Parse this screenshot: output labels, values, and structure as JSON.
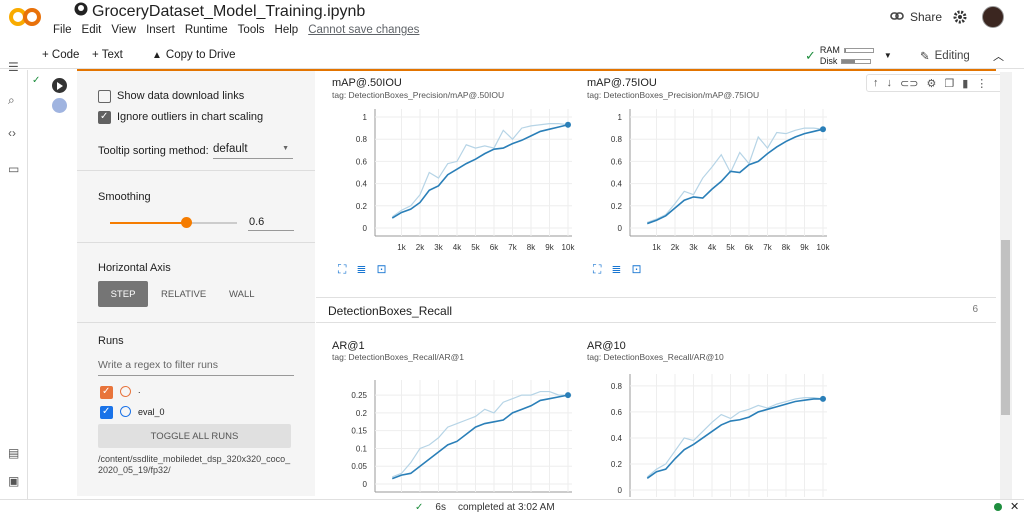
{
  "header": {
    "title": "GroceryDataset_Model_Training.ipynb",
    "menu": [
      "File",
      "Edit",
      "View",
      "Insert",
      "Runtime",
      "Tools",
      "Help"
    ],
    "unsaved": "Cannot save changes",
    "share": "Share"
  },
  "toolbar": {
    "code": "+ Code",
    "text": "+ Text",
    "copy_to_drive": "Copy to Drive",
    "ram": "RAM",
    "disk": "Disk",
    "ram_fill": 0.05,
    "disk_fill": 0.45,
    "editing": "Editing"
  },
  "sidebar": {
    "show_download": "Show data download links",
    "ignore_outliers": "Ignore outliers in chart scaling",
    "tooltip_label": "Tooltip sorting method:",
    "tooltip_value": "default",
    "smoothing_label": "Smoothing",
    "smoothing_value": "0.6",
    "smoothing_fill": 0.6,
    "haxis_label": "Horizontal Axis",
    "haxis_options": [
      "STEP",
      "RELATIVE",
      "WALL"
    ],
    "runs_label": "Runs",
    "runs_filter_placeholder": "Write a regex to filter runs",
    "run1": ".",
    "run2": "eval_0",
    "toggle_all": "TOGGLE ALL RUNS",
    "path": "/content/ssdlite_mobiledet_dsp_320x320_coco_2020_05_19/fp32/"
  },
  "main": {
    "recall_header": "DetectionBoxes_Recall",
    "recall_count": "6"
  },
  "charts": {
    "c1": {
      "title": "mAP@.50IOU",
      "tag": "tag: DetectionBoxes_Precision/mAP@.50IOU"
    },
    "c2": {
      "title": "mAP@.75IOU",
      "tag": "tag: DetectionBoxes_Precision/mAP@.75IOU"
    },
    "c3": {
      "title": "AR@1",
      "tag": "tag: DetectionBoxes_Recall/AR@1"
    },
    "c4": {
      "title": "AR@10",
      "tag": "tag: DetectionBoxes_Recall/AR@10"
    }
  },
  "chart_data": [
    {
      "type": "line",
      "title": "mAP@.50IOU",
      "x": [
        500,
        1000,
        1500,
        2000,
        2500,
        3000,
        3500,
        4000,
        4500,
        5000,
        5500,
        6000,
        6500,
        7000,
        7500,
        8000,
        8500,
        9000,
        9500,
        10000
      ],
      "xticks": [
        "1k",
        "2k",
        "3k",
        "4k",
        "5k",
        "6k",
        "7k",
        "8k",
        "9k",
        "10k"
      ],
      "yticks": [
        "0",
        "0.2",
        "0.4",
        "0.6",
        "0.8",
        "1"
      ],
      "ylim": [
        0,
        1
      ],
      "series": [
        {
          "values": [
            0.1,
            0.16,
            0.2,
            0.3,
            0.5,
            0.45,
            0.58,
            0.6,
            0.75,
            0.72,
            0.74,
            0.72,
            0.88,
            0.8,
            0.9,
            0.92,
            0.93,
            0.94,
            0.94,
            0.93
          ]
        },
        {
          "values": [
            0.09,
            0.14,
            0.17,
            0.23,
            0.34,
            0.38,
            0.48,
            0.53,
            0.58,
            0.62,
            0.67,
            0.71,
            0.72,
            0.76,
            0.79,
            0.83,
            0.87,
            0.89,
            0.91,
            0.93
          ]
        }
      ]
    },
    {
      "type": "line",
      "title": "mAP@.75IOU",
      "x": [
        500,
        1000,
        1500,
        2000,
        2500,
        3000,
        3500,
        4000,
        4500,
        5000,
        5500,
        6000,
        6500,
        7000,
        7500,
        8000,
        8500,
        9000,
        9500,
        10000
      ],
      "xticks": [
        "1k",
        "2k",
        "3k",
        "4k",
        "5k",
        "6k",
        "7k",
        "8k",
        "9k",
        "10k"
      ],
      "yticks": [
        "0",
        "0.2",
        "0.4",
        "0.6",
        "0.8",
        "1"
      ],
      "ylim": [
        0,
        1
      ],
      "series": [
        {
          "values": [
            0.05,
            0.08,
            0.12,
            0.22,
            0.33,
            0.3,
            0.45,
            0.55,
            0.66,
            0.5,
            0.68,
            0.58,
            0.82,
            0.72,
            0.86,
            0.85,
            0.88,
            0.9,
            0.9,
            0.89
          ]
        },
        {
          "values": [
            0.04,
            0.07,
            0.11,
            0.18,
            0.25,
            0.28,
            0.27,
            0.35,
            0.42,
            0.51,
            0.5,
            0.57,
            0.6,
            0.67,
            0.73,
            0.78,
            0.82,
            0.85,
            0.87,
            0.89
          ]
        }
      ]
    },
    {
      "type": "line",
      "title": "AR@1",
      "x": [
        500,
        1000,
        1500,
        2000,
        2500,
        3000,
        3500,
        4000,
        4500,
        5000,
        5500,
        6000,
        6500,
        7000,
        7500,
        8000,
        8500,
        9000,
        9500,
        10000
      ],
      "yticks": [
        "0",
        "0.05",
        "0.1",
        "0.15",
        "0.2",
        "0.25"
      ],
      "ylim": [
        0,
        0.27
      ],
      "series": [
        {
          "values": [
            0.02,
            0.03,
            0.06,
            0.1,
            0.11,
            0.13,
            0.16,
            0.17,
            0.18,
            0.19,
            0.21,
            0.2,
            0.23,
            0.24,
            0.25,
            0.25,
            0.26,
            0.26,
            0.25,
            0.25
          ]
        },
        {
          "values": [
            0.015,
            0.025,
            0.03,
            0.05,
            0.07,
            0.09,
            0.11,
            0.12,
            0.14,
            0.16,
            0.17,
            0.175,
            0.18,
            0.2,
            0.21,
            0.22,
            0.235,
            0.24,
            0.245,
            0.25
          ]
        }
      ]
    },
    {
      "type": "line",
      "title": "AR@10",
      "x": [
        500,
        1000,
        1500,
        2000,
        2500,
        3000,
        3500,
        4000,
        4500,
        5000,
        5500,
        6000,
        6500,
        7000,
        7500,
        8000,
        8500,
        9000,
        9500,
        10000
      ],
      "yticks": [
        "0",
        "0.2",
        "0.4",
        "0.6",
        "0.8"
      ],
      "ylim": [
        0,
        0.83
      ],
      "series": [
        {
          "values": [
            0.1,
            0.16,
            0.2,
            0.3,
            0.4,
            0.38,
            0.45,
            0.52,
            0.58,
            0.55,
            0.6,
            0.62,
            0.65,
            0.63,
            0.66,
            0.68,
            0.7,
            0.71,
            0.71,
            0.7
          ]
        },
        {
          "values": [
            0.09,
            0.14,
            0.16,
            0.24,
            0.31,
            0.35,
            0.4,
            0.45,
            0.5,
            0.53,
            0.54,
            0.56,
            0.6,
            0.62,
            0.64,
            0.66,
            0.68,
            0.69,
            0.7,
            0.7
          ]
        }
      ]
    }
  ],
  "status": {
    "duration": "6s",
    "completed": "completed at 3:02 AM"
  }
}
